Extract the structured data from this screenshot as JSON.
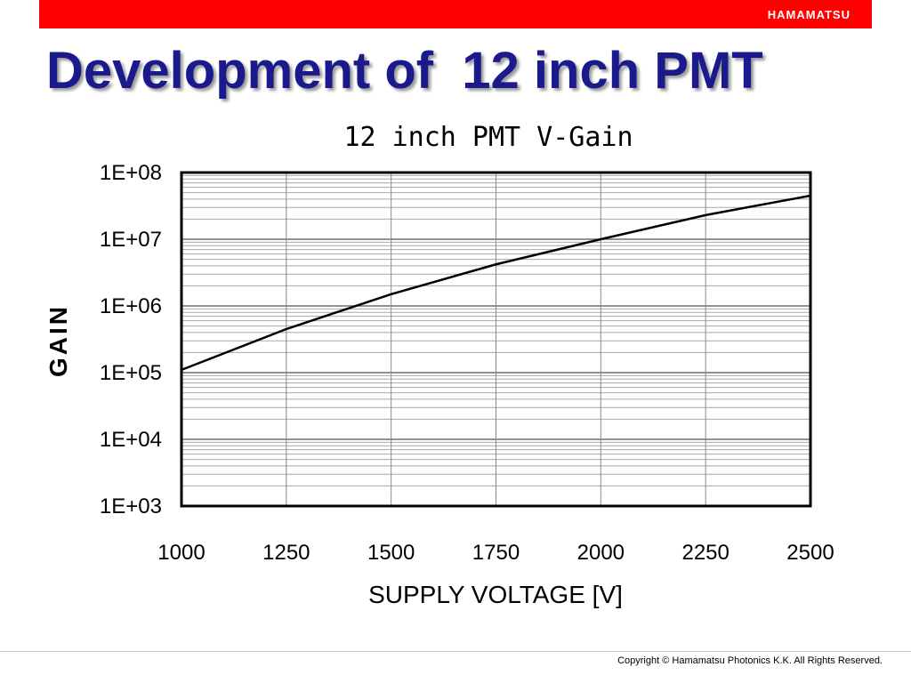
{
  "brand": "HAMAMATSU",
  "slide_title": "Development of  12 inch PMT",
  "footer": {
    "copyright": "Copyright © Hamamatsu Photonics K.K.   All Rights Reserved."
  },
  "colors": {
    "header_bar": "#ff0000",
    "title": "#1a1a8c",
    "line": "#000000"
  },
  "chart_data": {
    "type": "line",
    "title": "12 inch PMT V-Gain",
    "xlabel": "SUPPLY VOLTAGE [V]",
    "ylabel": "GAIN",
    "x_ticks": [
      "1000",
      "1250",
      "1500",
      "1750",
      "2000",
      "2250",
      "2500"
    ],
    "y_ticks": [
      "1E+03",
      "1E+04",
      "1E+05",
      "1E+06",
      "1E+07",
      "1E+08"
    ],
    "xlim": [
      1000,
      2500
    ],
    "ylim": [
      1000,
      100000000
    ],
    "y_scale": "log",
    "grid": true,
    "series": [
      {
        "x": [
          1000,
          1250,
          1500,
          1750,
          2000,
          2250,
          2500
        ],
        "y": [
          110000,
          450000,
          1500000,
          4200000,
          10000000,
          23000000,
          45000000
        ]
      }
    ]
  }
}
